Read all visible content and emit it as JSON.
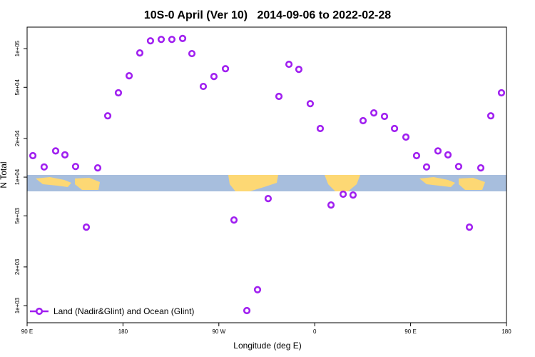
{
  "chart_data": {
    "type": "scatter",
    "title": "10S-0 April (Ver 10)   2014-09-06 to 2022-02-28",
    "x_label": "Longitude (deg E)",
    "y_label": "N Total",
    "yscale": "log",
    "xlim": [
      90,
      540
    ],
    "ylim": [
      736,
      147000
    ],
    "xticks": [
      {
        "value": 90,
        "label": "90 E"
      },
      {
        "value": 180,
        "label": "180"
      },
      {
        "value": 270,
        "label": "90 W"
      },
      {
        "value": 360,
        "label": "0"
      },
      {
        "value": 450,
        "label": "90 E"
      },
      {
        "value": 540,
        "label": "180"
      }
    ],
    "yticks": [
      {
        "value": 1000,
        "label": "1e+03"
      },
      {
        "value": 2000,
        "label": "2e+03"
      },
      {
        "value": 5000,
        "label": "5e+03"
      },
      {
        "value": 10000,
        "label": "1e+04"
      },
      {
        "value": 20000,
        "label": "2e+04"
      },
      {
        "value": 50000,
        "label": "5e+04"
      },
      {
        "value": 100000,
        "label": "1e+05"
      }
    ],
    "legend": "bottom-left",
    "series": [
      {
        "name": "Land (Nadir&Glint) and Ocean (Glint)",
        "color": "#a020f0",
        "x": [
          95.4,
          106,
          116.8,
          125.5,
          135.5,
          145.6,
          156.3,
          165.7,
          175.7,
          185.8,
          195.8,
          205.8,
          215.9,
          225.9,
          236,
          244.7,
          255.4,
          265.4,
          276.2,
          284.2,
          296.3,
          306.3,
          316.3,
          326.4,
          335.8,
          345.1,
          355.8,
          365.2,
          375.3,
          386.7,
          396,
          405.4,
          415.5,
          425.5,
          434.9,
          445.6,
          455.6,
          465,
          475.7,
          485.1,
          495.1,
          505.2,
          515.9,
          525.3,
          535.3
        ],
        "values": [
          14700,
          12000,
          16000,
          14900,
          12100,
          4080,
          11800,
          30000,
          45300,
          61500,
          92600,
          115000,
          118000,
          118000,
          120000,
          91500,
          50800,
          60700,
          69800,
          4640,
          915,
          1330,
          6810,
          42500,
          75500,
          69000,
          37300,
          23900,
          6070,
          7360,
          7260,
          27500,
          31600,
          29700,
          23900,
          20500,
          14700,
          12000,
          16000,
          14900,
          12100,
          4080,
          11800,
          30000,
          45300
        ]
      }
    ]
  }
}
